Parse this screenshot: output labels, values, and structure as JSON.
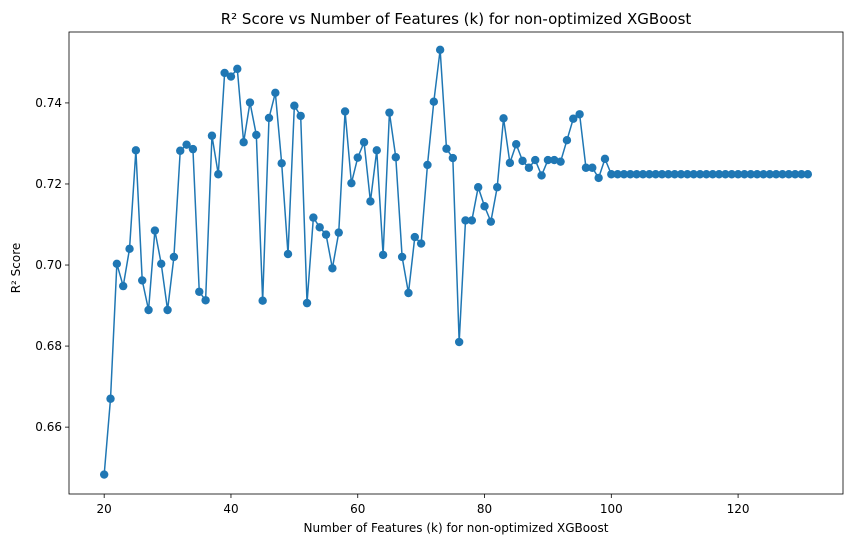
{
  "chart_data": {
    "type": "line",
    "title": "R² Score vs Number of Features (k) for non-optimized XGBoost",
    "xlabel": "Number of Features (k) for non-optimized XGBoost",
    "ylabel": "R² Score",
    "xlim": [
      14.45,
      136.55
    ],
    "ylim": [
      0.6435,
      0.7575
    ],
    "xticks": [
      20,
      40,
      60,
      80,
      100,
      120
    ],
    "yticks": [
      0.66,
      0.68,
      0.7,
      0.72,
      0.74
    ],
    "ytick_labels": [
      "0.66",
      "0.68",
      "0.70",
      "0.72",
      "0.74"
    ],
    "grid": false,
    "marker": "circle",
    "color": "#1f77b4",
    "series": [
      {
        "x": [
          20,
          21,
          22,
          23,
          24,
          25,
          26,
          27,
          28,
          29,
          30,
          31,
          32,
          33,
          34,
          35,
          36,
          37,
          38,
          39,
          40,
          41,
          42,
          43,
          44,
          45,
          46,
          47,
          48,
          49,
          50,
          51,
          52,
          53,
          54,
          55,
          56,
          57,
          58,
          59,
          60,
          61,
          62,
          63,
          64,
          65,
          66,
          67,
          68,
          69,
          70,
          71,
          72,
          73,
          74,
          75,
          76,
          77,
          78,
          79,
          80,
          81,
          82,
          83,
          84,
          85,
          86,
          87,
          88,
          89,
          90,
          91,
          92,
          93,
          94,
          95,
          96,
          97,
          98,
          99,
          100,
          101,
          102,
          103,
          104,
          105,
          106,
          107,
          108,
          109,
          110,
          111,
          112,
          113,
          114,
          115,
          116,
          117,
          118,
          119,
          120,
          121,
          122,
          123,
          124,
          125,
          126,
          127,
          128,
          129,
          130,
          131
        ],
        "values": [
          0.6483,
          0.667,
          0.7003,
          0.6948,
          0.704,
          0.7283,
          0.6962,
          0.6889,
          0.7085,
          0.7003,
          0.6889,
          0.702,
          0.7282,
          0.7297,
          0.7286,
          0.6934,
          0.6913,
          0.7319,
          0.7224,
          0.7474,
          0.7465,
          0.7484,
          0.7303,
          0.7401,
          0.7321,
          0.6912,
          0.7363,
          0.7425,
          0.7251,
          0.7027,
          0.7393,
          0.7368,
          0.6906,
          0.7117,
          0.7093,
          0.7075,
          0.6992,
          0.708,
          0.7379,
          0.7202,
          0.7265,
          0.7303,
          0.7157,
          0.7283,
          0.7025,
          0.7376,
          0.7266,
          0.702,
          0.6931,
          0.7069,
          0.7053,
          0.7247,
          0.7403,
          0.7531,
          0.7287,
          0.7264,
          0.681,
          0.711,
          0.711,
          0.7192,
          0.7145,
          0.7107,
          0.7192,
          0.7362,
          0.7252,
          0.7298,
          0.7257,
          0.724,
          0.7259,
          0.7221,
          0.7259,
          0.7259,
          0.7255,
          0.7308,
          0.7361,
          0.7372,
          0.724,
          0.724,
          0.7215,
          0.7262,
          0.7224,
          0.7224,
          0.7224,
          0.7224,
          0.7224,
          0.7224,
          0.7224,
          0.7224,
          0.7224,
          0.7224,
          0.7224,
          0.7224,
          0.7224,
          0.7224,
          0.7224,
          0.7224,
          0.7224,
          0.7224,
          0.7224,
          0.7224,
          0.7224,
          0.7224,
          0.7224,
          0.7224,
          0.7224,
          0.7224,
          0.7224,
          0.7224,
          0.7224,
          0.7224,
          0.7224,
          0.7224
        ]
      }
    ]
  }
}
